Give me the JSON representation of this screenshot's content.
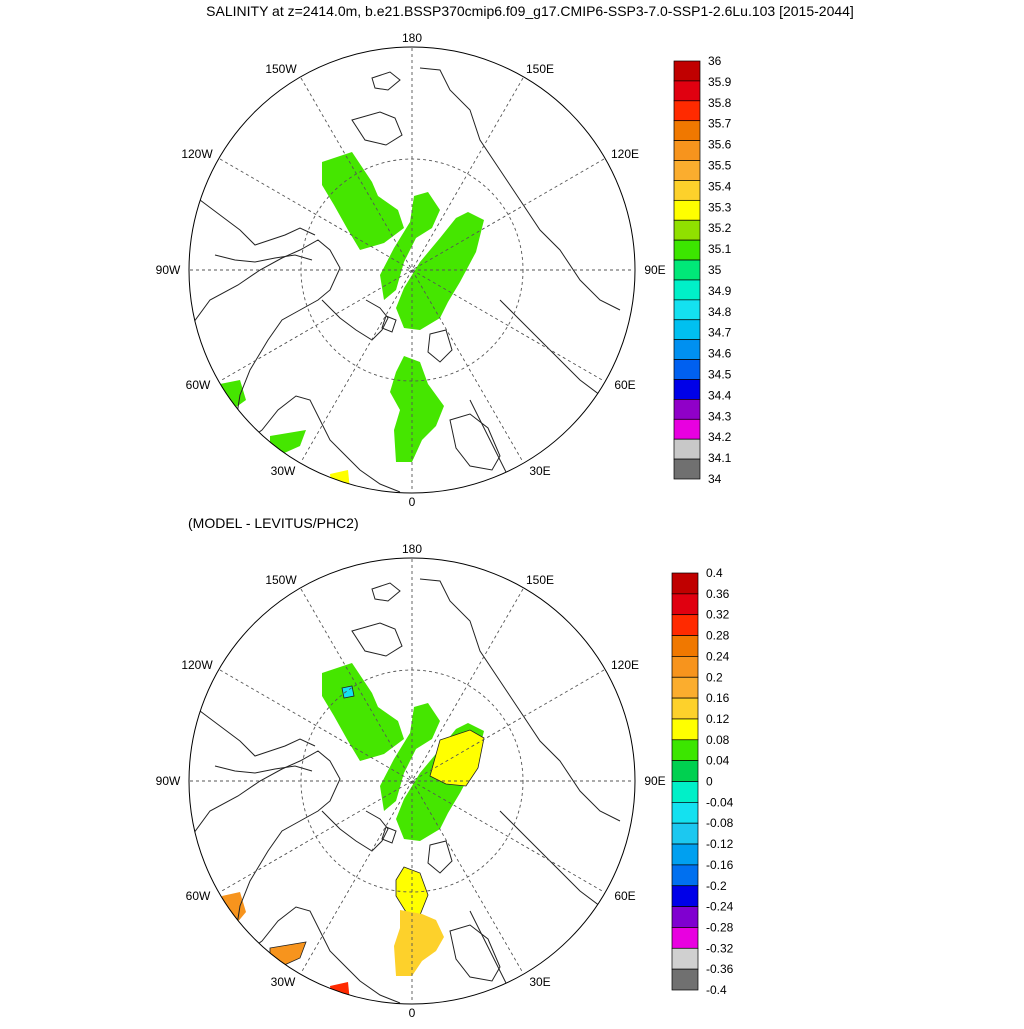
{
  "top_panel": {
    "title": "SALINITY at z=2414.0m, b.e21.BSSP370cmip6.f09_g17.CMIP6-SSP3-7.0-SSP1-2.6Lu.103 [2015-2044]",
    "lon_labels": {
      "180": "180",
      "150E": "150E",
      "120E": "120E",
      "90E": "90E",
      "60E": "60E",
      "30E": "30E",
      "0": "0",
      "30W": "30W",
      "60W": "60W",
      "90W": "90W",
      "120W": "120W",
      "150W": "150W"
    },
    "colorbar": {
      "labels": [
        "36",
        "35.9",
        "35.8",
        "35.7",
        "35.6",
        "35.5",
        "35.4",
        "35.3",
        "35.2",
        "35.1",
        "35",
        "34.9",
        "34.8",
        "34.7",
        "34.6",
        "34.5",
        "34.4",
        "34.3",
        "34.2",
        "34.1",
        "34"
      ],
      "colors": [
        "#c00000",
        "#e00010",
        "#ff2a00",
        "#f07800",
        "#f7941d",
        "#fbad2e",
        "#fdd12b",
        "#ffff00",
        "#90e000",
        "#3ce600",
        "#00e878",
        "#00f0c8",
        "#14e1f0",
        "#00c0f0",
        "#0090f0",
        "#0060f0",
        "#0000e8",
        "#9000c8",
        "#e800e0",
        "#c8c8c8",
        "#707070"
      ]
    }
  },
  "bottom_panel": {
    "title": "(MODEL - LEVITUS/PHC2)",
    "lon_labels": {
      "180": "180",
      "150E": "150E",
      "120E": "120E",
      "90E": "90E",
      "60E": "60E",
      "30E": "30E",
      "0": "0",
      "30W": "30W",
      "60W": "60W",
      "90W": "90W",
      "120W": "120W",
      "150W": "150W"
    },
    "colorbar": {
      "labels": [
        "0.4",
        "0.36",
        "0.32",
        "0.28",
        "0.24",
        "0.2",
        "0.16",
        "0.12",
        "0.08",
        "0.04",
        "0",
        "-0.04",
        "-0.08",
        "-0.12",
        "-0.16",
        "-0.2",
        "-0.24",
        "-0.28",
        "-0.32",
        "-0.36",
        "-0.4"
      ],
      "colors": [
        "#c00000",
        "#e00010",
        "#ff2a00",
        "#f07800",
        "#f7941d",
        "#fbad2e",
        "#fdd12b",
        "#ffff00",
        "#3ce600",
        "#00d050",
        "#00f0c8",
        "#14e1f0",
        "#1cc8f0",
        "#00a0f0",
        "#0070f0",
        "#0000e8",
        "#8000d0",
        "#e800e0",
        "#d0d0d0",
        "#707070"
      ]
    }
  },
  "colors": {
    "field_green": "#45e600",
    "field_yellow": "#ffff00",
    "field_gold": "#fdd12b",
    "field_orange": "#f7941d",
    "field_red": "#ff2a00",
    "coast": "#222222"
  }
}
